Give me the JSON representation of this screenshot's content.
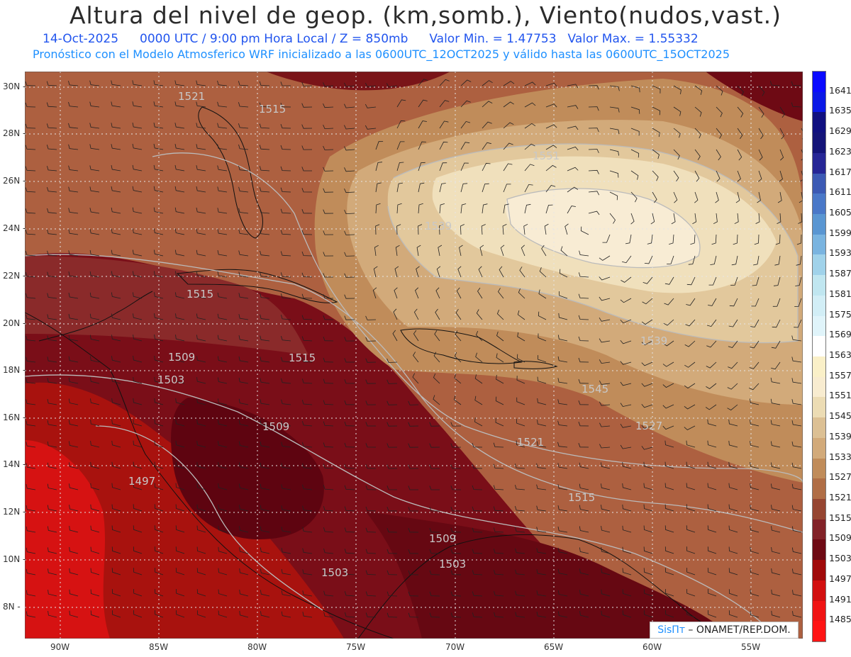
{
  "header": {
    "title": "Altura del nivel de geop. (km,somb.), Viento(nudos,vast.)",
    "date": "14-Oct-2025",
    "time_info": "0000 UTC / 9:00 pm Hora Local / Z = 850mb",
    "min_value": "Valor Min. = 1.47753",
    "max_value": "Valor Max. = 1.55332",
    "model_info": "Pronóstico con el Modelo Atmosferico WRF inicializado a las 0600UTC_12OCT2025 y válido hasta las  0600UTC_15OCT2025"
  },
  "map": {
    "lat_labels": [
      "30N",
      "28N",
      "26N",
      "24N",
      "22N",
      "20N",
      "18N",
      "16N",
      "14N",
      "12N",
      "10N",
      "8N"
    ],
    "lon_labels": [
      "90W",
      "85W",
      "80W",
      "75W",
      "70W",
      "65W",
      "60W",
      "55W"
    ],
    "contour_labels": [
      {
        "text": "1521"
      },
      {
        "text": "1515"
      },
      {
        "text": "1551"
      },
      {
        "text": "1539"
      },
      {
        "text": "1515"
      },
      {
        "text": "1509"
      },
      {
        "text": "1503"
      },
      {
        "text": "1515"
      },
      {
        "text": "1509"
      },
      {
        "text": "1497"
      },
      {
        "text": "1521"
      },
      {
        "text": "1527"
      },
      {
        "text": "1515"
      },
      {
        "text": "1509"
      },
      {
        "text": "1503"
      },
      {
        "text": "1503"
      },
      {
        "text": "1539"
      },
      {
        "text": "1545"
      }
    ]
  },
  "colorbar": {
    "levels": [
      "1641",
      "1635",
      "1629",
      "1623",
      "1617",
      "1611",
      "1605",
      "1599",
      "1593",
      "1587",
      "1581",
      "1575",
      "1569",
      "1563",
      "1557",
      "1551",
      "1545",
      "1539",
      "1533",
      "1527",
      "1521",
      "1515",
      "1509",
      "1503",
      "1497",
      "1491",
      "1485"
    ],
    "colors": [
      "#0a0aff",
      "#0a18e6",
      "#101080",
      "#141478",
      "#262696",
      "#3c5ab4",
      "#4a78c8",
      "#5a96d2",
      "#7ab4e0",
      "#a0d2ea",
      "#c0e6f0",
      "#d2eef6",
      "#e0f4fa",
      "#ffffff",
      "#faf0c8",
      "#f8ecd0",
      "#ecdcb4",
      "#dcc094",
      "#d2aa7a",
      "#c08c5a",
      "#b06e46",
      "#964632",
      "#822228",
      "#6e0a14",
      "#a00a0a",
      "#d21010",
      "#f01414"
    ]
  },
  "credit": {
    "brand": "SisПт",
    "org": " – ONAMET/REP.DOM."
  }
}
